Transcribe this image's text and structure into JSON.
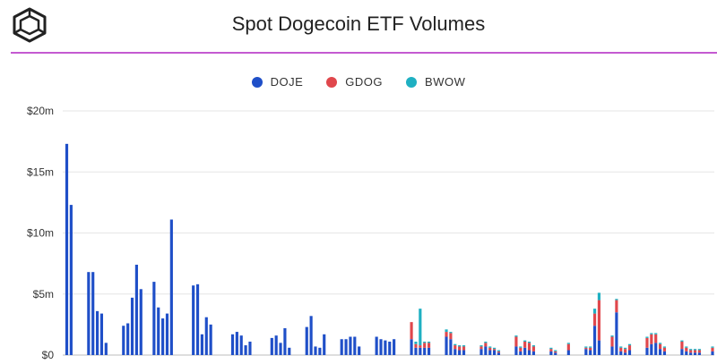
{
  "title": "Spot Dogecoin ETF Volumes",
  "colors": {
    "accent_rule": "#c45ad1",
    "DOJE": "#1f4fc8",
    "GDOG": "#e0474c",
    "BWOW": "#1fb0c2",
    "grid": "#e6e6e6",
    "text": "#333333"
  },
  "logo": {
    "icon": "cube-logo-icon"
  },
  "chart_data": {
    "type": "bar",
    "stacked": true,
    "title": "Spot Dogecoin ETF Volumes",
    "xlabel": "",
    "ylabel": "",
    "ylim": [
      0,
      20
    ],
    "y_unit": "$m",
    "y_ticks": [
      "$0",
      "$5m",
      "$10m",
      "$15m",
      "$20m"
    ],
    "y_tick_values": [
      0,
      5,
      10,
      15,
      20
    ],
    "grid": true,
    "legend_position": "top-center",
    "series": [
      {
        "name": "DOJE",
        "color": "#1f4fc8",
        "values": [
          17.3,
          12.3,
          0,
          0,
          0,
          6.8,
          6.8,
          3.6,
          3.4,
          1.0,
          0,
          0,
          0,
          2.4,
          2.6,
          4.7,
          7.4,
          5.4,
          0,
          0,
          6.0,
          3.9,
          3.0,
          3.4,
          11.1,
          0,
          0,
          0,
          0,
          5.7,
          5.8,
          1.7,
          3.1,
          2.5,
          0,
          0,
          0,
          0,
          1.7,
          1.9,
          1.6,
          0.8,
          1.1,
          0,
          0,
          0,
          0,
          1.4,
          1.6,
          1.0,
          2.2,
          0.6,
          0,
          0,
          0,
          2.3,
          3.2,
          0.7,
          0.6,
          1.7,
          0,
          0,
          0,
          1.3,
          1.3,
          1.5,
          1.5,
          0.7,
          0,
          0,
          0,
          1.5,
          1.3,
          1.2,
          1.1,
          1.3,
          0,
          0,
          0,
          1.3,
          0.6,
          0.6,
          0.6,
          0.6,
          0,
          0,
          0,
          1.5,
          1.3,
          0.5,
          0.4,
          0.4,
          0,
          0,
          0,
          0.5,
          0.7,
          0.4,
          0.4,
          0.2,
          0,
          0,
          0,
          0.7,
          0.3,
          0.6,
          0.4,
          0.3,
          0,
          0,
          0,
          0.3,
          0.2,
          0,
          0,
          0.4,
          0,
          0,
          0,
          0.5,
          0.4,
          2.4,
          1.2,
          0,
          0,
          0.7,
          3.5,
          0.3,
          0.2,
          0.4,
          0,
          0,
          0,
          0.6,
          0.9,
          1.0,
          0.5,
          0.3,
          0,
          0,
          0,
          0.5,
          0.3,
          0.2,
          0.2,
          0.2,
          0,
          0,
          0.3
        ]
      },
      {
        "name": "GDOG",
        "color": "#e0474c",
        "values": [
          0,
          0,
          0,
          0,
          0,
          0,
          0,
          0,
          0,
          0,
          0,
          0,
          0,
          0,
          0,
          0,
          0,
          0,
          0,
          0,
          0,
          0,
          0,
          0,
          0,
          0,
          0,
          0,
          0,
          0,
          0,
          0,
          0,
          0,
          0,
          0,
          0,
          0,
          0,
          0,
          0,
          0,
          0,
          0,
          0,
          0,
          0,
          0,
          0,
          0,
          0,
          0,
          0,
          0,
          0,
          0,
          0,
          0,
          0,
          0,
          0,
          0,
          0,
          0,
          0,
          0,
          0,
          0,
          0,
          0,
          0,
          0,
          0,
          0,
          0,
          0,
          0,
          0,
          0,
          1.4,
          0.3,
          0.2,
          0.4,
          0.4,
          0,
          0,
          0,
          0.4,
          0.5,
          0.3,
          0.3,
          0.3,
          0,
          0,
          0,
          0.2,
          0.3,
          0.2,
          0.1,
          0.1,
          0,
          0,
          0,
          0.8,
          0.3,
          0.5,
          0.6,
          0.4,
          0,
          0,
          0,
          0.2,
          0.1,
          0,
          0,
          0.5,
          0,
          0,
          0,
          0.1,
          0.2,
          1.0,
          3.3,
          0,
          0,
          0.8,
          1.0,
          0.3,
          0.3,
          0.4,
          0,
          0,
          0,
          0.8,
          0.8,
          0.7,
          0.4,
          0.3,
          0,
          0,
          0,
          0.6,
          0.3,
          0.2,
          0.2,
          0.2,
          0,
          0,
          0.3
        ]
      },
      {
        "name": "BWOW",
        "color": "#1fb0c2",
        "values": [
          0,
          0,
          0,
          0,
          0,
          0,
          0,
          0,
          0,
          0,
          0,
          0,
          0,
          0,
          0,
          0,
          0,
          0,
          0,
          0,
          0,
          0,
          0,
          0,
          0,
          0,
          0,
          0,
          0,
          0,
          0,
          0,
          0,
          0,
          0,
          0,
          0,
          0,
          0,
          0,
          0,
          0,
          0,
          0,
          0,
          0,
          0,
          0,
          0,
          0,
          0,
          0,
          0,
          0,
          0,
          0,
          0,
          0,
          0,
          0,
          0,
          0,
          0,
          0,
          0,
          0,
          0,
          0,
          0,
          0,
          0,
          0,
          0,
          0,
          0,
          0,
          0,
          0,
          0,
          0,
          0.2,
          3.0,
          0.1,
          0.1,
          0,
          0,
          0,
          0.2,
          0.1,
          0.1,
          0.1,
          0.1,
          0,
          0,
          0,
          0.1,
          0.1,
          0.1,
          0.1,
          0.1,
          0,
          0,
          0,
          0.1,
          0.1,
          0.1,
          0.1,
          0.1,
          0,
          0,
          0,
          0.1,
          0.1,
          0,
          0,
          0.1,
          0,
          0,
          0,
          0.1,
          0.1,
          0.4,
          0.6,
          0,
          0,
          0.1,
          0.1,
          0.1,
          0.1,
          0.1,
          0,
          0,
          0,
          0.1,
          0.1,
          0.1,
          0.1,
          0.1,
          0,
          0,
          0,
          0.1,
          0.1,
          0.1,
          0.1,
          0.1,
          0,
          0,
          0.1
        ]
      }
    ]
  }
}
